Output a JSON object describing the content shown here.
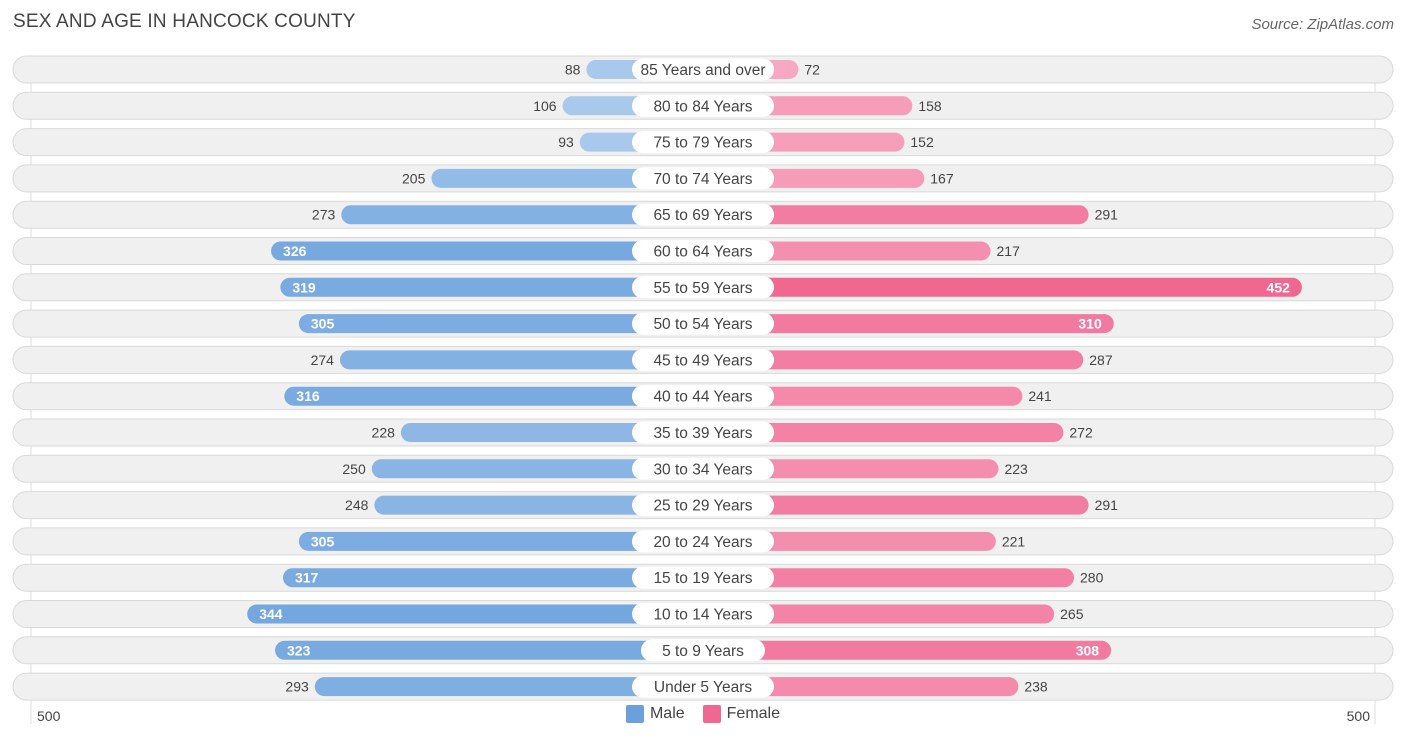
{
  "header": {
    "title": "SEX AND AGE IN HANCOCK COUNTY",
    "source": "Source: ZipAtlas.com"
  },
  "legend": {
    "male_label": "Male",
    "female_label": "Female"
  },
  "axis": {
    "left_label": "500",
    "right_label": "500"
  },
  "colors": {
    "male_light": "#a8c8ec",
    "male_dark": "#6aa1dc",
    "female_light": "#f7a8c2",
    "female_dark": "#f06792",
    "row_bg": "#f0f0f0",
    "row_border": "#d9d9d9"
  },
  "chart_data": {
    "type": "bar",
    "orientation": "horizontal-diverging",
    "title": "SEX AND AGE IN HANCOCK COUNTY",
    "max": 500,
    "categories": [
      "85 Years and over",
      "80 to 84 Years",
      "75 to 79 Years",
      "70 to 74 Years",
      "65 to 69 Years",
      "60 to 64 Years",
      "55 to 59 Years",
      "50 to 54 Years",
      "45 to 49 Years",
      "40 to 44 Years",
      "35 to 39 Years",
      "30 to 34 Years",
      "25 to 29 Years",
      "20 to 24 Years",
      "15 to 19 Years",
      "10 to 14 Years",
      "5 to 9 Years",
      "Under 5 Years"
    ],
    "series": [
      {
        "name": "Male",
        "values": [
          88,
          106,
          93,
          205,
          273,
          326,
          319,
          305,
          274,
          316,
          228,
          250,
          248,
          305,
          317,
          344,
          323,
          293
        ]
      },
      {
        "name": "Female",
        "values": [
          72,
          158,
          152,
          167,
          291,
          217,
          452,
          310,
          287,
          241,
          272,
          223,
          291,
          221,
          280,
          265,
          308,
          238
        ]
      }
    ],
    "legend_position": "bottom-center"
  }
}
